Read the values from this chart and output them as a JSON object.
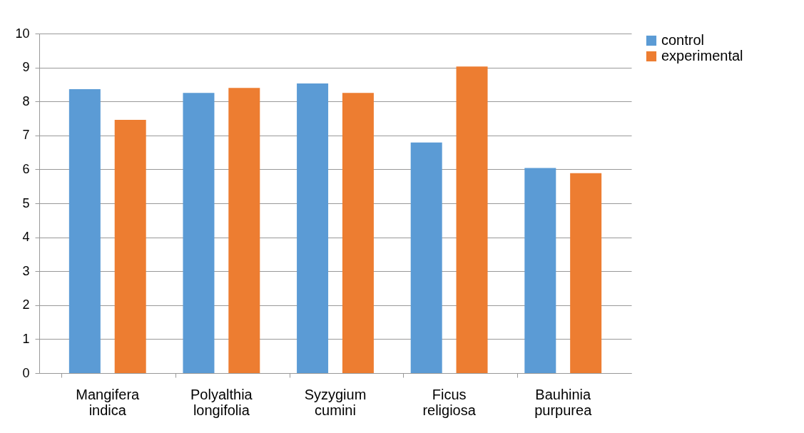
{
  "chart_data": {
    "type": "bar",
    "categories": [
      "Mangifera indica",
      "Polyalthia longifolia",
      "Syzygium cumini",
      "Ficus religiosa",
      "Bauhinia purpurea"
    ],
    "series": [
      {
        "name": "control",
        "color": "#5b9bd5",
        "values": [
          8.36,
          8.25,
          8.53,
          6.79,
          6.04
        ]
      },
      {
        "name": "experimental",
        "color": "#ed7d31",
        "values": [
          7.46,
          8.4,
          8.25,
          9.03,
          5.89
        ]
      }
    ],
    "ylim": [
      0,
      10
    ],
    "yticks": [
      0,
      1,
      2,
      3,
      4,
      5,
      6,
      7,
      8,
      9,
      10
    ],
    "grid": "y",
    "legend": "right"
  }
}
